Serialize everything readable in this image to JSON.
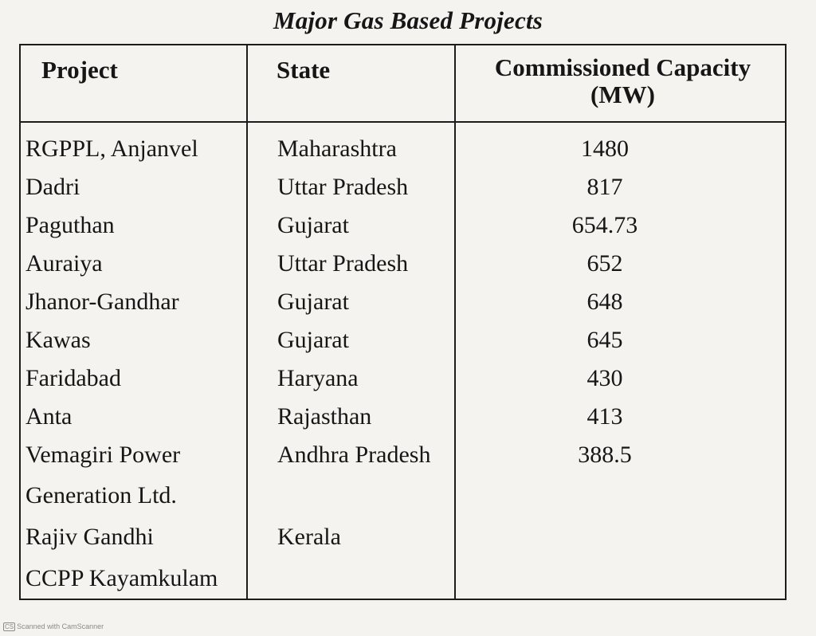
{
  "title": "Major Gas Based Projects",
  "table": {
    "headers": {
      "project": "Project",
      "state": "State",
      "capacity_line1": "Commissioned Capacity",
      "capacity_line2": "(MW)"
    },
    "rows": [
      {
        "project": "RGPPL, Anjanvel",
        "state": "Maharashtra",
        "capacity": "1480"
      },
      {
        "project": "Dadri",
        "state": "Uttar Pradesh",
        "capacity": "817"
      },
      {
        "project": "Paguthan",
        "state": "Gujarat",
        "capacity": "654.73"
      },
      {
        "project": "Auraiya",
        "state": "Uttar Pradesh",
        "capacity": "652"
      },
      {
        "project": "Jhanor-Gandhar",
        "state": "Gujarat",
        "capacity": "648"
      },
      {
        "project": "Kawas",
        "state": "Gujarat",
        "capacity": "645"
      },
      {
        "project": "Faridabad",
        "state": "Haryana",
        "capacity": "430"
      },
      {
        "project": "Anta",
        "state": "Rajasthan",
        "capacity": "413"
      },
      {
        "project": "Vemagiri Power",
        "state": "Andhra Pradesh",
        "capacity": "388.5"
      },
      {
        "project": "Generation Ltd.",
        "state": "",
        "capacity": ""
      },
      {
        "project": "Rajiv Gandhi",
        "state": "Kerala",
        "capacity": ""
      },
      {
        "project": "CCPP Kayamkulam",
        "state": "",
        "capacity": ""
      }
    ]
  },
  "footer": {
    "badge": "CS",
    "text": "Scanned with CamScanner"
  }
}
